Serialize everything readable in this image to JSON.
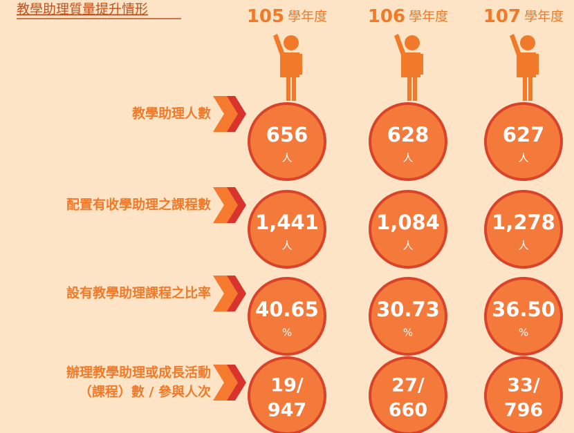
{
  "title": "教學助理質量提升情形",
  "years": [
    {
      "number": "105",
      "suffix": "學年度"
    },
    {
      "number": "106",
      "suffix": "學年度"
    },
    {
      "number": "107",
      "suffix": "學年度"
    }
  ],
  "rows": [
    {
      "label": [
        "教學助理人數"
      ],
      "cells": [
        {
          "value": "656",
          "unit": "人"
        },
        {
          "value": "628",
          "unit": "人"
        },
        {
          "value": "627",
          "unit": "人"
        }
      ]
    },
    {
      "label": [
        "配置有收學助理之課程數"
      ],
      "cells": [
        {
          "value": "1,441",
          "unit": "人"
        },
        {
          "value": "1,084",
          "unit": "人"
        },
        {
          "value": "1,278",
          "unit": "人"
        }
      ]
    },
    {
      "label": [
        "設有教學助理課程之比率"
      ],
      "cells": [
        {
          "value": "40.65",
          "unit": "%"
        },
        {
          "value": "30.73",
          "unit": "%"
        },
        {
          "value": "36.50",
          "unit": "%"
        }
      ]
    },
    {
      "label": [
        "辦理教學助理或成長活動",
        "（課程）數 / 參與人次"
      ],
      "cells": [
        {
          "value": "19/",
          "total": "947"
        },
        {
          "value": "27/",
          "total": "660"
        },
        {
          "value": "33/",
          "total": "796"
        }
      ]
    }
  ]
}
